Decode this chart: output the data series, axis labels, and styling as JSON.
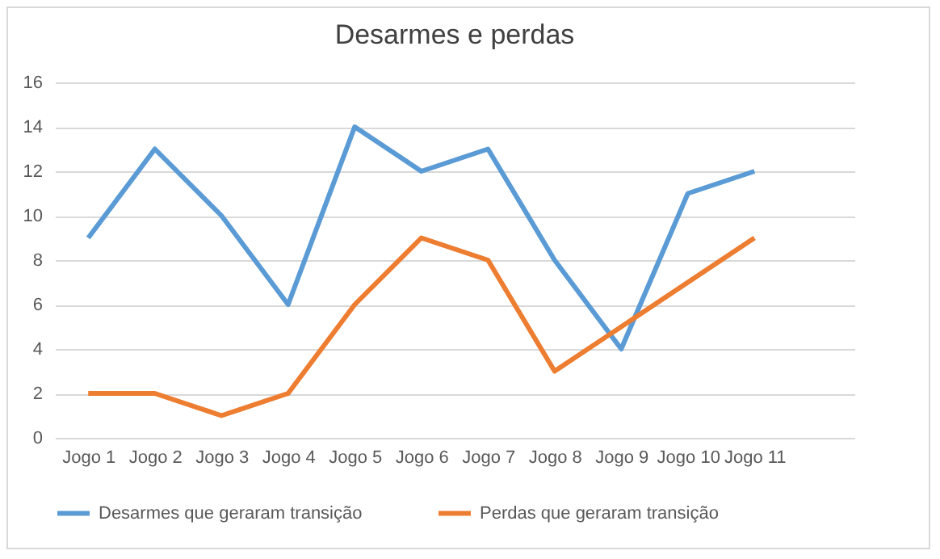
{
  "chart_data": {
    "type": "line",
    "title": "Desarmes e perdas",
    "categories": [
      "Jogo 1",
      "Jogo 2",
      "Jogo 3",
      "Jogo 4",
      "Jogo 5",
      "Jogo 6",
      "Jogo 7",
      "Jogo 8",
      "Jogo 9",
      "Jogo 10",
      "Jogo 11",
      null
    ],
    "series": [
      {
        "name": "Desarmes que geraram transição",
        "color": "#5b9bd5",
        "values": [
          9,
          13,
          10,
          6,
          14,
          12,
          13,
          8,
          4,
          11,
          12,
          null
        ]
      },
      {
        "name": "Perdas que geraram transição",
        "color": "#ed7d31",
        "values": [
          2,
          2,
          1,
          2,
          6,
          9,
          8,
          3,
          5,
          7,
          9,
          null
        ]
      }
    ],
    "ylim": [
      0,
      16
    ],
    "yticks": [
      0,
      2,
      4,
      6,
      8,
      10,
      12,
      14,
      16
    ],
    "grid": "y",
    "legend": "bottom"
  }
}
